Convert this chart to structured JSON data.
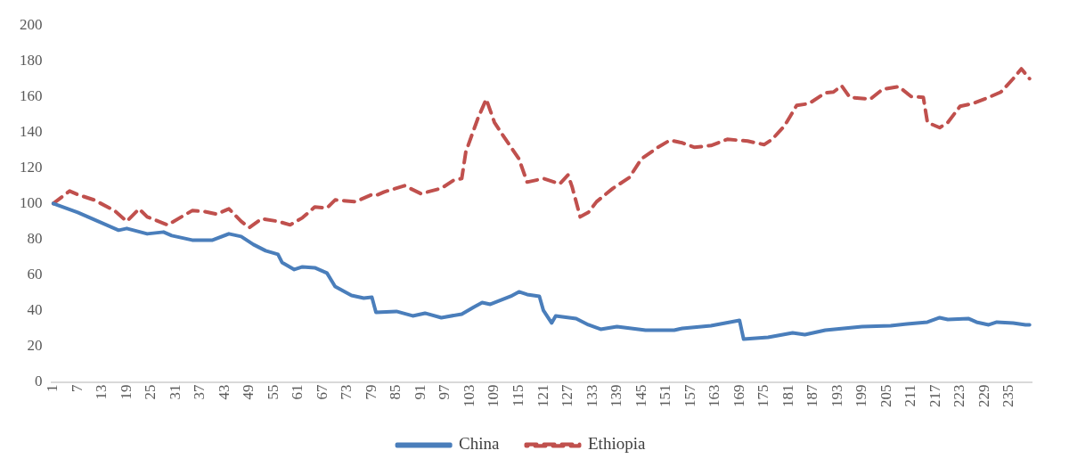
{
  "chart_data": {
    "type": "line",
    "xlim": [
      0.5,
      240.5
    ],
    "xticks": [
      1,
      7,
      13,
      19,
      25,
      31,
      37,
      43,
      49,
      55,
      61,
      67,
      73,
      79,
      85,
      91,
      97,
      103,
      109,
      115,
      121,
      127,
      133,
      139,
      145,
      151,
      157,
      163,
      169,
      175,
      181,
      187,
      193,
      199,
      205,
      211,
      217,
      223,
      229,
      235
    ],
    "ylim": [
      0,
      200
    ],
    "yticks": [
      0,
      20,
      40,
      60,
      80,
      100,
      120,
      140,
      160,
      180,
      200
    ],
    "grid": false,
    "legend": "bottom",
    "marker": "none",
    "series": [
      {
        "name": "China",
        "color": "#4a7ebb",
        "line_style": "solid",
        "x": [
          1,
          7,
          11,
          17,
          19,
          24,
          28,
          30,
          35,
          40,
          44,
          47,
          50,
          53,
          56,
          57,
          60,
          62,
          65,
          68,
          70,
          74,
          77,
          79,
          80,
          85,
          89,
          92,
          96,
          101,
          104,
          106,
          108,
          113,
          115,
          117,
          120,
          121,
          123,
          124,
          129,
          132,
          135,
          139,
          146,
          153,
          155,
          162,
          169,
          170,
          176,
          182,
          185,
          190,
          199,
          206,
          210,
          215,
          218,
          220,
          225,
          227,
          230,
          232,
          236,
          239,
          240
        ],
        "values": [
          100,
          95,
          91,
          85,
          86,
          83,
          84,
          82,
          79.5,
          79.5,
          83,
          81.5,
          77,
          73.5,
          71.5,
          67,
          63,
          64.5,
          64,
          61,
          53.5,
          48.5,
          47,
          47.5,
          39,
          39.5,
          37,
          38.5,
          36,
          38,
          42,
          44.5,
          43.5,
          48,
          50.5,
          49,
          48,
          40,
          33,
          37,
          35.5,
          32,
          29.5,
          31,
          29,
          29,
          30,
          31.5,
          34.5,
          24,
          25,
          27.5,
          26.5,
          29,
          31,
          31.5,
          32.5,
          33.5,
          36,
          35,
          35.5,
          33.5,
          32,
          33.5,
          33,
          32,
          32
        ]
      },
      {
        "name": "Ethiopia",
        "color": "#c0504d",
        "line_style": "dashed",
        "x": [
          1,
          5,
          7,
          11,
          16,
          19,
          22,
          24,
          29,
          35,
          38,
          41,
          44,
          47,
          49,
          52,
          56,
          59,
          62,
          65,
          68,
          70,
          75,
          79,
          80,
          82,
          87,
          91,
          96,
          99,
          101,
          102,
          105,
          107,
          109,
          111,
          115,
          117,
          121,
          125,
          127,
          128,
          130,
          132,
          134,
          138,
          142,
          145,
          149,
          152,
          155,
          158,
          162,
          166,
          171,
          175,
          177,
          180,
          183,
          186,
          190,
          192,
          194,
          196,
          201,
          204,
          208,
          211,
          214,
          215,
          218,
          220,
          223,
          226,
          230,
          233,
          236,
          238,
          240
        ],
        "values": [
          100,
          107,
          105,
          102,
          96,
          90,
          97,
          92.5,
          88,
          96,
          95.5,
          94,
          97,
          90,
          86.5,
          91.5,
          90,
          88,
          92,
          98,
          97.5,
          102,
          101,
          105,
          104.5,
          106.5,
          110,
          105.5,
          108.5,
          113,
          114,
          129,
          148,
          158.5,
          145.5,
          138.5,
          125,
          112,
          114,
          111,
          116,
          109.5,
          92.5,
          95,
          101,
          108.5,
          114.5,
          125,
          131.5,
          135.5,
          134,
          131.5,
          132.5,
          136,
          135,
          133,
          136,
          143.5,
          155,
          156,
          162,
          162.5,
          166,
          159.5,
          158.5,
          164,
          165.5,
          160,
          159.5,
          145.5,
          142.5,
          145.5,
          154.5,
          156,
          159.5,
          162.5,
          170,
          175.5,
          170
        ]
      }
    ]
  }
}
